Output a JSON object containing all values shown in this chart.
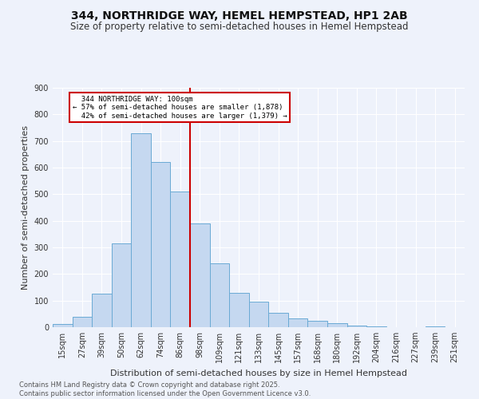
{
  "title": "344, NORTHRIDGE WAY, HEMEL HEMPSTEAD, HP1 2AB",
  "subtitle": "Size of property relative to semi-detached houses in Hemel Hempstead",
  "xlabel": "Distribution of semi-detached houses by size in Hemel Hempstead",
  "ylabel": "Number of semi-detached properties",
  "footnote": "Contains HM Land Registry data © Crown copyright and database right 2025.\nContains public sector information licensed under the Open Government Licence v3.0.",
  "bar_labels": [
    "15sqm",
    "27sqm",
    "39sqm",
    "50sqm",
    "62sqm",
    "74sqm",
    "86sqm",
    "98sqm",
    "109sqm",
    "121sqm",
    "133sqm",
    "145sqm",
    "157sqm",
    "168sqm",
    "180sqm",
    "192sqm",
    "204sqm",
    "216sqm",
    "227sqm",
    "239sqm",
    "251sqm"
  ],
  "bar_values": [
    12,
    40,
    125,
    315,
    730,
    620,
    510,
    390,
    240,
    128,
    95,
    55,
    33,
    25,
    15,
    7,
    3,
    0,
    0,
    3,
    0
  ],
  "bar_color": "#c5d8f0",
  "bar_edge_color": "#6aaad4",
  "property_label": "344 NORTHRIDGE WAY: 100sqm",
  "pct_smaller": 57,
  "count_smaller": 1878,
  "pct_larger": 42,
  "count_larger": 1379,
  "vline_color": "#cc0000",
  "vline_x_index": 7,
  "annotation_box_color": "#cc0000",
  "ylim": [
    0,
    900
  ],
  "yticks": [
    0,
    100,
    200,
    300,
    400,
    500,
    600,
    700,
    800,
    900
  ],
  "background_color": "#eef2fb",
  "grid_color": "#ffffff",
  "title_fontsize": 10,
  "subtitle_fontsize": 8.5,
  "axis_label_fontsize": 8,
  "tick_fontsize": 7,
  "footnote_fontsize": 6
}
